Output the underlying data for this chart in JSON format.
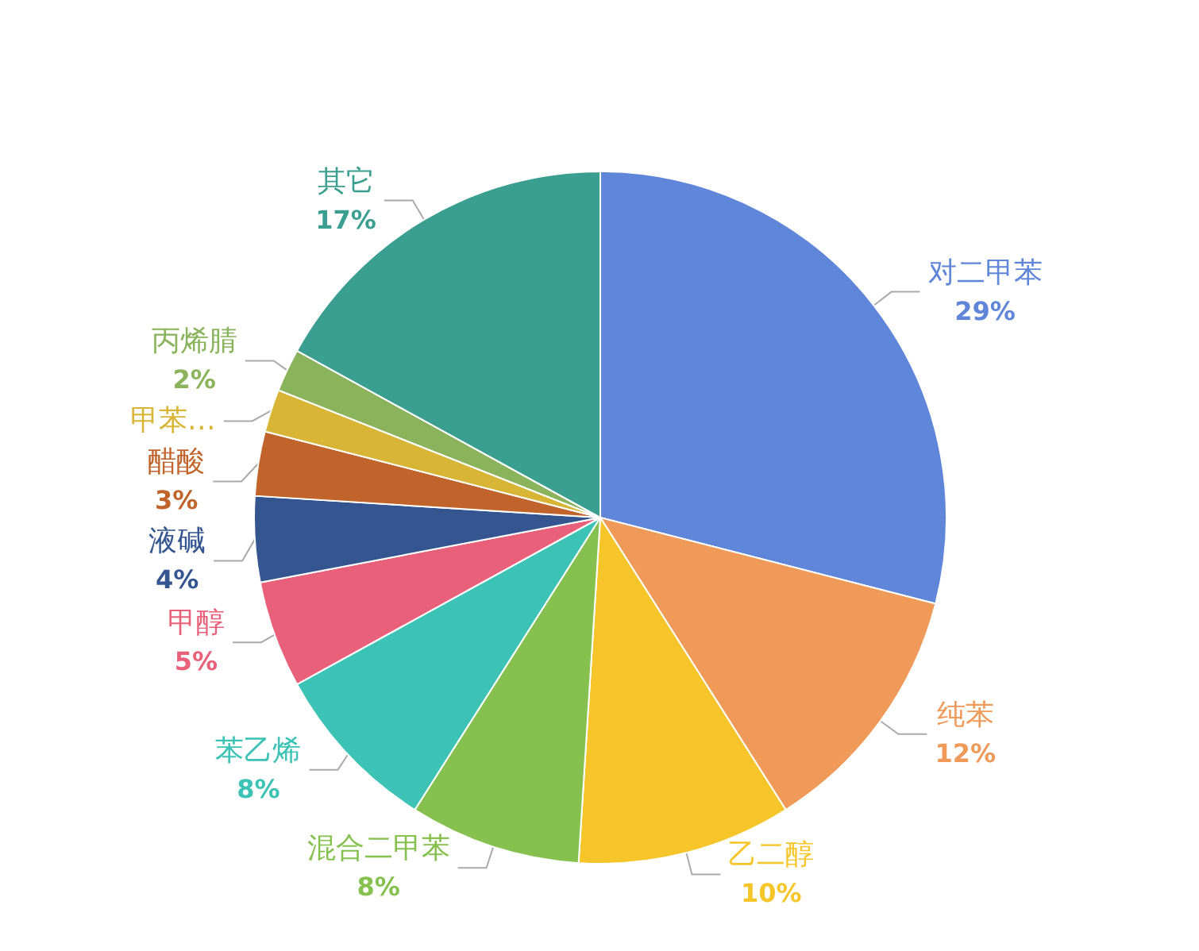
{
  "chart_data": {
    "type": "pie",
    "categories": [
      "对二甲苯",
      "纯苯",
      "乙二醇",
      "混合二甲苯",
      "苯乙烯",
      "甲醇",
      "液碱",
      "醋酸",
      "甲苯…",
      "丙烯腈",
      "其它"
    ],
    "values": [
      29,
      12,
      10,
      8,
      8,
      5,
      4,
      3,
      2,
      2,
      17
    ],
    "value_labels": [
      "29%",
      "12%",
      "10%",
      "8%",
      "8%",
      "5%",
      "4%",
      "3%",
      null,
      "2%",
      "17%"
    ],
    "colors": [
      "#5f86d8",
      "#f09a5a",
      "#f5c52a",
      "#86c150",
      "#3cc3b5",
      "#e8607a",
      "#34558f",
      "#c0642c",
      "#d8b535",
      "#8ab35c",
      "#3a9f90"
    ],
    "legend": false
  }
}
